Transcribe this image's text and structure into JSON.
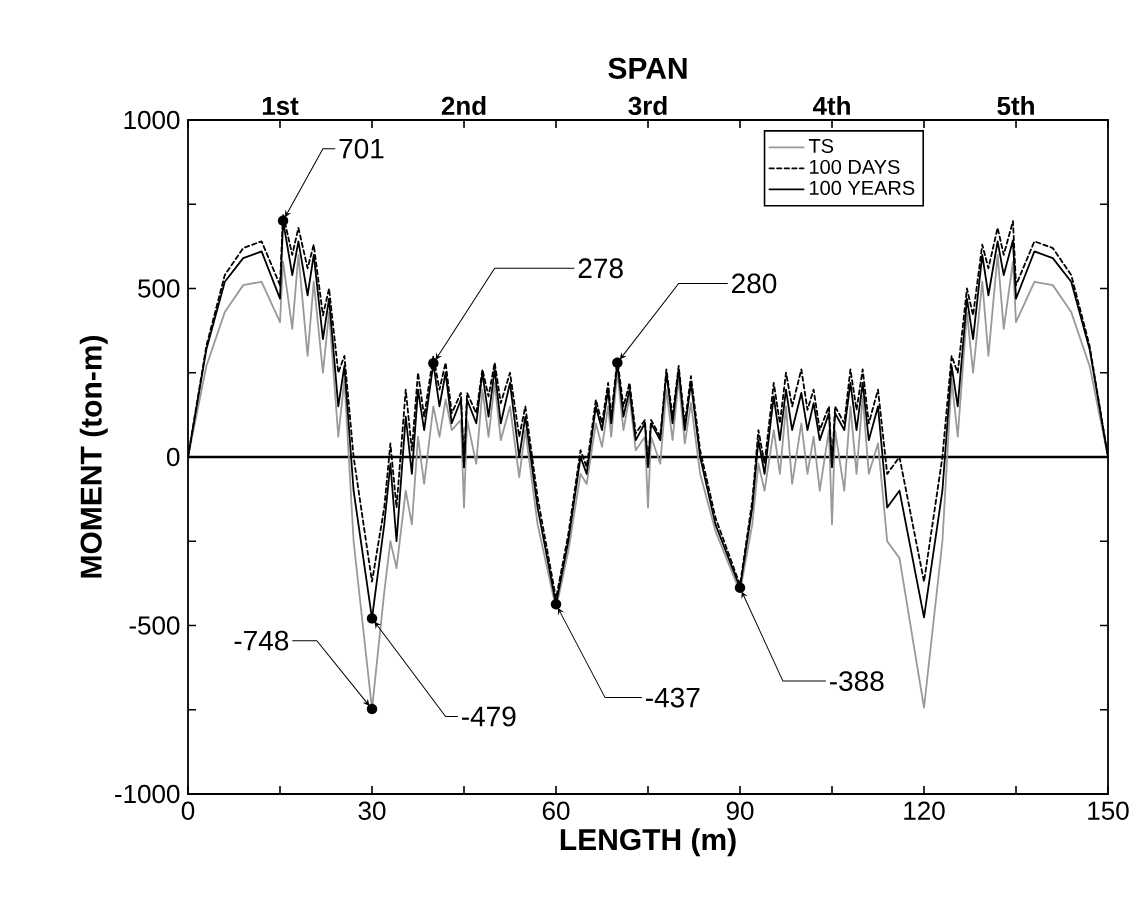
{
  "chart_data": {
    "type": "line",
    "xlabel": "LENGTH (m)",
    "ylabel": "MOMENT (ton-m)",
    "x2label": "SPAN",
    "x": [
      0,
      3,
      6,
      9,
      12,
      15,
      15.5,
      17,
      18,
      19.5,
      20.5,
      22,
      23,
      24.5,
      25.5,
      27,
      30,
      32,
      33,
      34,
      35.5,
      36.5,
      37.5,
      38.5,
      40,
      41,
      42,
      43,
      44.5,
      45,
      45.5,
      47,
      48,
      49,
      50,
      51,
      52.5,
      54,
      55,
      57,
      60,
      62,
      64,
      65,
      66.5,
      67.5,
      68.5,
      69,
      70,
      71,
      72,
      73,
      74.5,
      75,
      75.5,
      77,
      78,
      79,
      80,
      81,
      82,
      83.5,
      86,
      90,
      92,
      93,
      94,
      95.5,
      96.5,
      97.5,
      98.5,
      100,
      101,
      102,
      103,
      104.5,
      105,
      105.5,
      107,
      108,
      109,
      110,
      111,
      112.5,
      114,
      116,
      120,
      123,
      124.5,
      125.5,
      127,
      128,
      129.5,
      130.5,
      132,
      133,
      134.5,
      135,
      138,
      141,
      144,
      147,
      150
    ],
    "series": [
      {
        "name": "TS",
        "color": "#999999",
        "line_style": "solid",
        "values": [
          0,
          270,
          430,
          510,
          520,
          400,
          580,
          380,
          600,
          300,
          520,
          250,
          430,
          60,
          230,
          -250,
          -748,
          -400,
          -250,
          -330,
          -100,
          -200,
          60,
          -80,
          150,
          60,
          170,
          80,
          110,
          -150,
          110,
          -20,
          200,
          60,
          220,
          50,
          150,
          -60,
          80,
          -200,
          -450,
          -280,
          -50,
          -80,
          100,
          30,
          150,
          60,
          250,
          80,
          180,
          20,
          60,
          -150,
          60,
          -20,
          200,
          50,
          230,
          40,
          160,
          -50,
          -220,
          -400,
          -200,
          -20,
          -100,
          80,
          -50,
          150,
          -80,
          100,
          -50,
          60,
          -100,
          80,
          -200,
          80,
          -100,
          150,
          -50,
          180,
          -50,
          40,
          -250,
          -300,
          -744,
          -250,
          230,
          60,
          430,
          250,
          520,
          300,
          600,
          380,
          580,
          400,
          520,
          510,
          430,
          270,
          0
        ]
      },
      {
        "name": "100 DAYS",
        "color": "#000000",
        "line_style": "dashed",
        "values": [
          0,
          330,
          540,
          620,
          640,
          510,
          720,
          600,
          680,
          560,
          630,
          420,
          500,
          250,
          300,
          0,
          -370,
          -150,
          40,
          -150,
          200,
          20,
          250,
          120,
          300,
          200,
          280,
          130,
          190,
          -30,
          190,
          130,
          260,
          180,
          280,
          160,
          250,
          60,
          150,
          -120,
          -420,
          -230,
          20,
          -30,
          170,
          100,
          220,
          120,
          290,
          150,
          220,
          70,
          110,
          -30,
          110,
          60,
          260,
          120,
          270,
          100,
          240,
          20,
          -180,
          -380,
          -130,
          80,
          -20,
          220,
          100,
          250,
          150,
          260,
          140,
          200,
          80,
          150,
          -30,
          150,
          100,
          260,
          140,
          260,
          100,
          200,
          -50,
          0,
          -370,
          0,
          300,
          250,
          500,
          420,
          630,
          560,
          680,
          600,
          700,
          510,
          640,
          620,
          540,
          330,
          0
        ]
      },
      {
        "name": "100 YEARS",
        "color": "#000000",
        "line_style": "solid",
        "values": [
          0,
          320,
          520,
          590,
          610,
          470,
          701,
          540,
          640,
          480,
          600,
          350,
          470,
          150,
          270,
          -100,
          -479,
          -200,
          -20,
          -250,
          120,
          -50,
          200,
          80,
          278,
          150,
          250,
          100,
          170,
          -30,
          170,
          100,
          250,
          120,
          260,
          100,
          220,
          0,
          120,
          -150,
          -437,
          -250,
          0,
          -50,
          150,
          80,
          200,
          100,
          280,
          120,
          200,
          50,
          100,
          -30,
          100,
          50,
          250,
          100,
          260,
          80,
          220,
          0,
          -200,
          -388,
          -150,
          50,
          -50,
          180,
          50,
          200,
          80,
          190,
          80,
          160,
          50,
          130,
          -30,
          130,
          80,
          220,
          80,
          220,
          50,
          150,
          -150,
          -100,
          -476,
          -100,
          270,
          150,
          470,
          350,
          600,
          480,
          640,
          540,
          643,
          470,
          610,
          590,
          520,
          320,
          0
        ]
      }
    ],
    "xlim": [
      0,
      150
    ],
    "xticks": [
      0,
      {
        "value": 15,
        "label": null
      },
      30,
      {
        "value": 45,
        "label": null
      },
      60,
      {
        "value": 75,
        "label": null
      },
      90,
      {
        "value": 105,
        "label": null
      },
      120,
      {
        "value": 135,
        "label": null
      },
      150
    ],
    "ylim": [
      -1000,
      1000
    ],
    "yticks": [
      -1000,
      {
        "value": -750,
        "label": null
      },
      -500,
      {
        "value": -250,
        "label": null
      },
      0,
      {
        "value": 250,
        "label": null
      },
      500,
      {
        "value": 750,
        "label": null
      },
      1000
    ],
    "ref_lines": [
      {
        "axis": "y",
        "value": 0,
        "color": "#000000"
      }
    ],
    "annotations": [
      "1st",
      "2nd",
      "3rd",
      "4th",
      "5th",
      {
        "text": "701",
        "x": 15.5,
        "y": 701
      },
      {
        "text": "278",
        "x": 40,
        "y": 278
      },
      {
        "text": "280",
        "x": 70,
        "y": 280
      },
      {
        "text": "-748",
        "x": 30,
        "y": -748
      },
      {
        "text": "-479",
        "x": 30,
        "y": -479
      },
      {
        "text": "-437",
        "x": 60,
        "y": -437
      },
      {
        "text": "-388",
        "x": 90,
        "y": -388
      }
    ],
    "legend": "top right",
    "marker": "none",
    "grid": false
  }
}
